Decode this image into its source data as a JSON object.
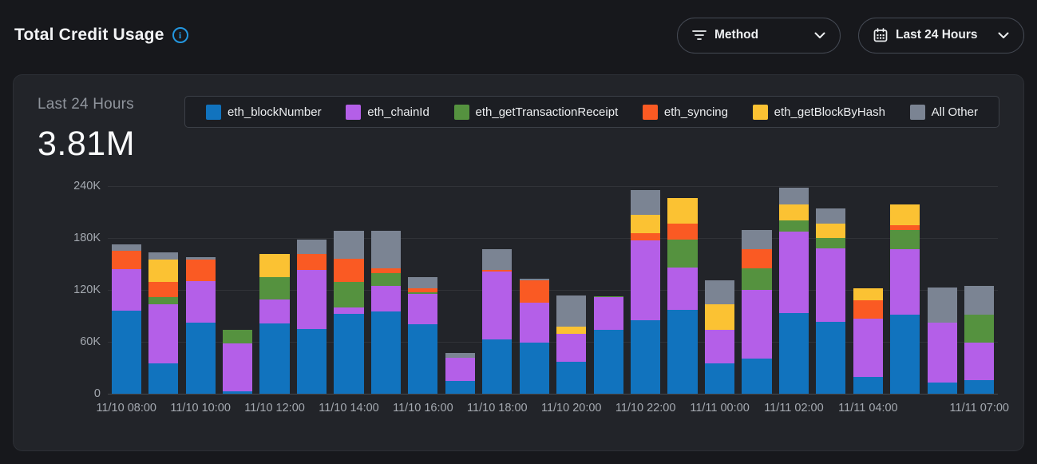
{
  "colors": {
    "page_bg": "#17181c",
    "panel_bg": "#222429",
    "accent_info": "#2397e0"
  },
  "header": {
    "title": "Total Credit Usage",
    "info_icon": "info-circle-icon",
    "method_filter": {
      "label": "Method",
      "icon": "filter-icon",
      "chevron": "chevron-down-icon"
    },
    "time_filter": {
      "label": "Last 24 Hours",
      "icon": "calendar-icon",
      "chevron": "chevron-down-icon"
    }
  },
  "panel": {
    "stat_label": "Last 24 Hours",
    "stat_value": "3.81M"
  },
  "chart_data": {
    "type": "bar",
    "stacked": true,
    "title": "Total Credit Usage — Last 24 Hours",
    "total_label": "3.81M",
    "n_bars": 24,
    "ylim": [
      0,
      240000
    ],
    "y_ticks": [
      {
        "value": 240000,
        "label": "240K"
      },
      {
        "value": 180000,
        "label": "180K"
      },
      {
        "value": 120000,
        "label": "120K"
      },
      {
        "value": 60000,
        "label": "60K"
      },
      {
        "value": 0,
        "label": "0"
      }
    ],
    "x_ticks": [
      {
        "index": 0,
        "label": "11/10 08:00"
      },
      {
        "index": 2,
        "label": "11/10 10:00"
      },
      {
        "index": 4,
        "label": "11/10 12:00"
      },
      {
        "index": 6,
        "label": "11/10 14:00"
      },
      {
        "index": 8,
        "label": "11/10 16:00"
      },
      {
        "index": 10,
        "label": "11/10 18:00"
      },
      {
        "index": 12,
        "label": "11/10 20:00"
      },
      {
        "index": 14,
        "label": "11/10 22:00"
      },
      {
        "index": 16,
        "label": "11/11 00:00"
      },
      {
        "index": 18,
        "label": "11/11 02:00"
      },
      {
        "index": 20,
        "label": "11/11 04:00"
      },
      {
        "index": 23,
        "label": "11/11 07:00"
      }
    ],
    "legend_position": "top",
    "grid": true,
    "series": [
      {
        "name": "eth_blockNumber",
        "color": "#1173be",
        "values": [
          96000,
          35000,
          82000,
          3000,
          81000,
          75000,
          92000,
          95000,
          80000,
          15000,
          63000,
          59000,
          37000,
          74000,
          85000,
          97000,
          35000,
          41000,
          93000,
          83000,
          19000,
          91000,
          13000,
          16000
        ]
      },
      {
        "name": "eth_chainId",
        "color": "#b45fe8",
        "values": [
          48000,
          68000,
          48000,
          55000,
          28000,
          68000,
          8000,
          30000,
          35000,
          27000,
          78000,
          46000,
          32000,
          38000,
          92000,
          49000,
          39000,
          79000,
          94000,
          85000,
          68000,
          76000,
          69000,
          43000
        ]
      },
      {
        "name": "eth_getTransactionReceipt",
        "color": "#55923f",
        "values": [
          0,
          9000,
          0,
          16000,
          26000,
          0,
          29000,
          14000,
          2000,
          0,
          0,
          0,
          0,
          1000,
          0,
          32000,
          0,
          25000,
          13000,
          12000,
          0,
          22000,
          0,
          32000
        ]
      },
      {
        "name": "eth_syncing",
        "color": "#fa5a23",
        "values": [
          21000,
          17000,
          25000,
          0,
          0,
          19000,
          27000,
          6000,
          5000,
          0,
          2000,
          26000,
          0,
          0,
          9000,
          19000,
          0,
          22000,
          0,
          0,
          21000,
          6000,
          0,
          0
        ]
      },
      {
        "name": "eth_getBlockByHash",
        "color": "#fbc233",
        "values": [
          0,
          26000,
          0,
          0,
          27000,
          0,
          0,
          0,
          0,
          0,
          0,
          0,
          9000,
          0,
          21000,
          29000,
          29000,
          0,
          19000,
          17000,
          14000,
          24000,
          0,
          0
        ]
      },
      {
        "name": "All Other",
        "color": "#7b8493",
        "values": [
          8000,
          8000,
          3000,
          0,
          0,
          16000,
          32000,
          43000,
          13000,
          5000,
          24000,
          2000,
          36000,
          0,
          28000,
          0,
          28000,
          22000,
          19000,
          17000,
          0,
          0,
          41000,
          34000
        ]
      }
    ]
  }
}
